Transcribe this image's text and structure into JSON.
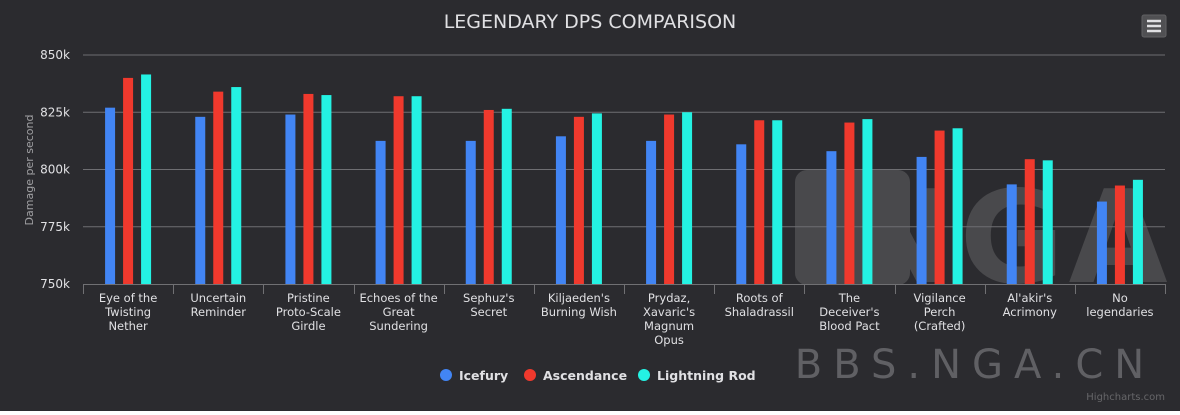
{
  "menu_icon": "hamburger-menu-icon",
  "watermark": {
    "logo_text": "NGA",
    "site": "BBS.NGA.CN"
  },
  "credits": "Highcharts.com",
  "colors": {
    "background": "#2b2b2f",
    "grid": "#6e6e72",
    "text": "#e0e0e3",
    "axis_title": "#a0a0a3"
  },
  "chart_data": {
    "type": "bar",
    "title": "LEGENDARY DPS COMPARISON",
    "xlabel": "",
    "ylabel": "Damage per second",
    "ylim": [
      750000,
      850000
    ],
    "yticks": [
      {
        "value": 750000,
        "label": "750k"
      },
      {
        "value": 775000,
        "label": "775k"
      },
      {
        "value": 800000,
        "label": "800k"
      },
      {
        "value": 825000,
        "label": "825k"
      },
      {
        "value": 850000,
        "label": "850k"
      }
    ],
    "grid": true,
    "legend_position": "bottom-center",
    "categories": [
      "Eye of the Twisting Nether",
      "Uncertain Reminder",
      "Pristine Proto-Scale Girdle",
      "Echoes of the Great Sundering",
      "Sephuz's Secret",
      "Kiljaeden's Burning Wish",
      "Prydaz, Xavaric's Magnum Opus",
      "Roots of Shaladrassil",
      "The Deceiver's Blood Pact",
      "Vigilance Perch (Crafted)",
      "Al'akir's Acrimony",
      "No legendaries"
    ],
    "category_lines": [
      [
        "Eye of the",
        "Twisting",
        "Nether"
      ],
      [
        "Uncertain",
        "Reminder"
      ],
      [
        "Pristine",
        "Proto-Scale",
        "Girdle"
      ],
      [
        "Echoes of the",
        "Great",
        "Sundering"
      ],
      [
        "Sephuz's",
        "Secret"
      ],
      [
        "Kiljaeden's",
        "Burning Wish"
      ],
      [
        "Prydaz,",
        "Xavaric's",
        "Magnum",
        "Opus"
      ],
      [
        "Roots of",
        "Shaladrassil"
      ],
      [
        "The",
        "Deceiver's",
        "Blood Pact"
      ],
      [
        "Vigilance",
        "Perch",
        "(Crafted)"
      ],
      [
        "Al'akir's",
        "Acrimony"
      ],
      [
        "No",
        "legendaries"
      ]
    ],
    "series": [
      {
        "name": "Icefury",
        "color": "#4285f4",
        "values": [
          827000,
          823000,
          824000,
          812500,
          812500,
          814500,
          812500,
          811000,
          808000,
          805500,
          793500,
          786000
        ]
      },
      {
        "name": "Ascendance",
        "color": "#f0392d",
        "values": [
          840000,
          834000,
          833000,
          832000,
          826000,
          823000,
          824000,
          821500,
          820500,
          817000,
          804500,
          793000
        ]
      },
      {
        "name": "Lightning Rod",
        "color": "#24f2e3",
        "values": [
          841500,
          836000,
          832500,
          832000,
          826500,
          824500,
          825000,
          821500,
          822000,
          818000,
          804000,
          795500
        ]
      }
    ]
  }
}
